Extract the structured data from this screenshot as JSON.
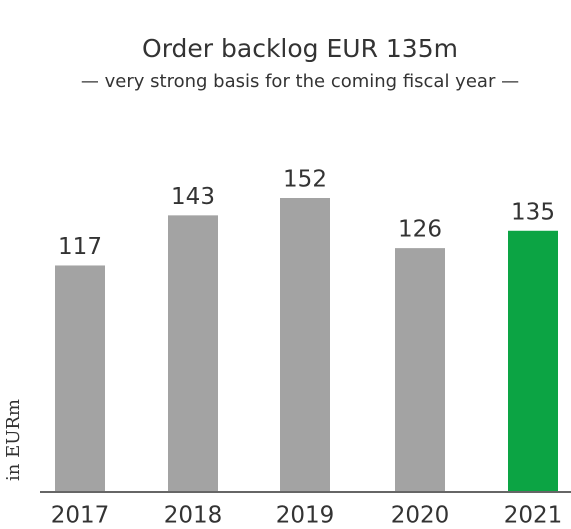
{
  "chart_data": {
    "type": "bar",
    "title": "Order backlog EUR 135m",
    "subtitle": "— very strong basis for the coming fiscal year —",
    "y_label": "in EURm",
    "categories": [
      "2017",
      "2018",
      "2019",
      "2020",
      "2021"
    ],
    "values": [
      117,
      143,
      152,
      126,
      135
    ],
    "colors": [
      "#a3a3a3",
      "#a3a3a3",
      "#a3a3a3",
      "#a3a3a3",
      "#0ca444"
    ]
  }
}
